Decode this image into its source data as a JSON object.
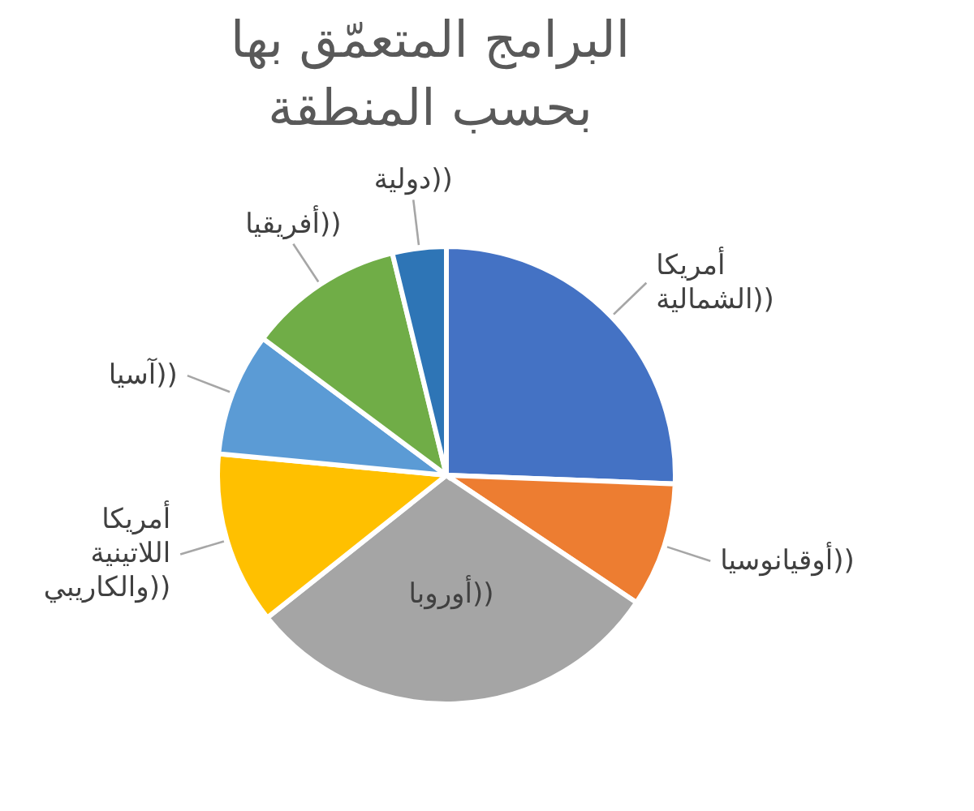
{
  "chart_data": {
    "type": "pie",
    "title": "البرامج المتعمّق بها بحسب المنطقة",
    "categories": [
      "أمريكا الشمالية))",
      "أوقيانوسيا))",
      "أوروبا))",
      "أمريكا اللاتينية والكاريبي))",
      "آسيا))",
      "أفريقيا))",
      "دولية))"
    ],
    "values": [
      25.6,
      8.8,
      29.9,
      12.2,
      8.7,
      11.0,
      3.8
    ],
    "colors": [
      "#4472c4",
      "#ed7d31",
      "#a5a5a5",
      "#ffc000",
      "#5b9bd5",
      "#70ad47",
      "#2e75b6"
    ]
  }
}
